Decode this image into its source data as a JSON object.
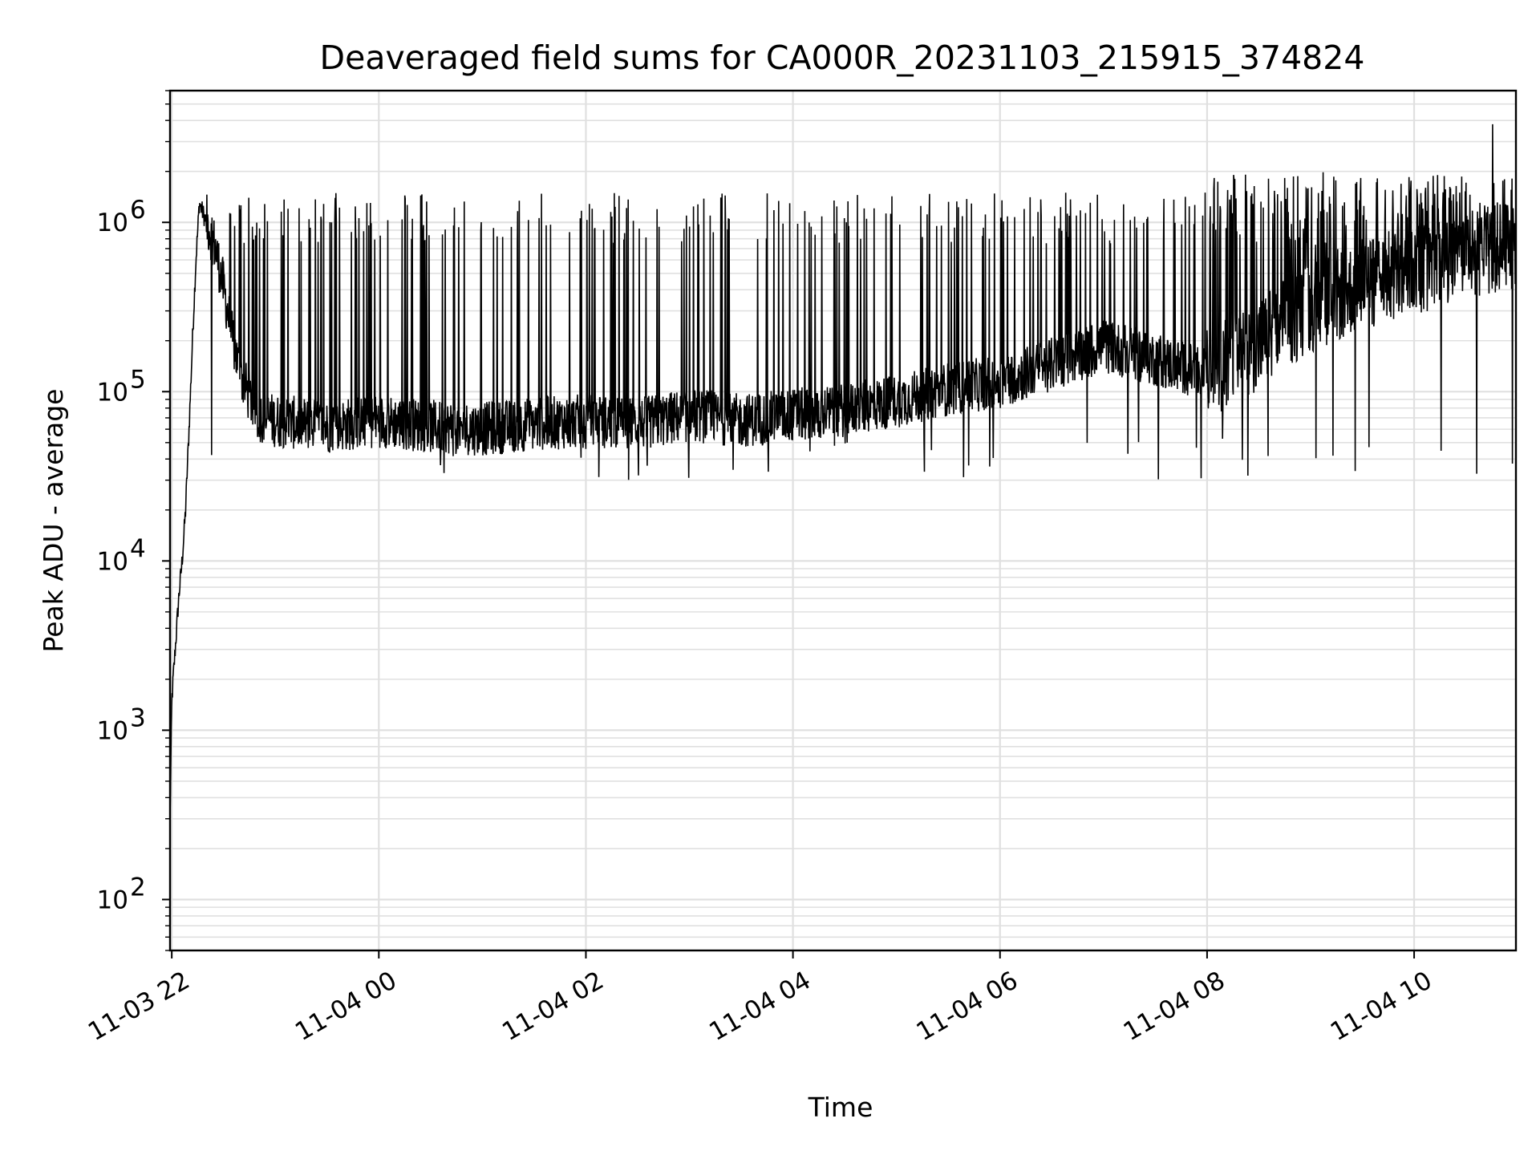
{
  "chart_data": {
    "type": "line",
    "title": "Deaveraged field sums for CA000R_20231103_215915_374824",
    "xlabel": "Time",
    "ylabel": "Peak ADU - average",
    "xscale": "time",
    "yscale": "log",
    "xlim": [
      "2023-11-03 21:59",
      "2023-11-04 10:59"
    ],
    "ylim": [
      50,
      6000000
    ],
    "grid": true,
    "line_color": "#000000",
    "grid_color": "#e0e0e0",
    "x_tick_labels": [
      "11-03 22",
      "11-04 00",
      "11-04 02",
      "11-04 04",
      "11-04 06",
      "11-04 08",
      "11-04 10"
    ],
    "x_tick_values": [
      "2023-11-03 22:00",
      "2023-11-04 00:00",
      "2023-11-04 02:00",
      "2023-11-04 04:00",
      "2023-11-04 06:00",
      "2023-11-04 08:00",
      "2023-11-04 10:00"
    ],
    "y_tick_labels": [
      {
        "base": "10",
        "exp": "2",
        "value": 100
      },
      {
        "base": "10",
        "exp": "3",
        "value": 1000
      },
      {
        "base": "10",
        "exp": "4",
        "value": 10000
      },
      {
        "base": "10",
        "exp": "5",
        "value": 100000
      },
      {
        "base": "10",
        "exp": "6",
        "value": 1000000
      }
    ],
    "series": [
      {
        "x": [
          "2023-11-03 21:59",
          "2023-11-03 22:00",
          "2023-11-03 22:02",
          "2023-11-03 22:04",
          "2023-11-03 22:06",
          "2023-11-03 22:08",
          "2023-11-03 22:10",
          "2023-11-03 22:12",
          "2023-11-03 22:14",
          "2023-11-03 22:16",
          "2023-11-03 22:20",
          "2023-11-03 22:25",
          "2023-11-03 22:30",
          "2023-11-03 22:35",
          "2023-11-03 22:40",
          "2023-11-03 22:45",
          "2023-11-03 22:50",
          "2023-11-03 23:00",
          "2023-11-03 23:30",
          "2023-11-04 00:00",
          "2023-11-04 00:30",
          "2023-11-04 01:00",
          "2023-11-04 01:30",
          "2023-11-04 02:00",
          "2023-11-04 02:30",
          "2023-11-04 03:00",
          "2023-11-04 03:30",
          "2023-11-04 04:00",
          "2023-11-04 04:30",
          "2023-11-04 05:00",
          "2023-11-04 05:30",
          "2023-11-04 06:00",
          "2023-11-04 06:30",
          "2023-11-04 07:00",
          "2023-11-04 07:30",
          "2023-11-04 08:00",
          "2023-11-04 08:30",
          "2023-11-04 09:00",
          "2023-11-04 09:30",
          "2023-11-04 10:00",
          "2023-11-04 10:30",
          "2023-11-04 10:59"
        ],
        "y": [
          300,
          1500,
          3000,
          6000,
          10000,
          20000,
          60000,
          200000,
          600000,
          1300000,
          1000000,
          700000,
          400000,
          200000,
          120000,
          90000,
          70000,
          65000,
          60000,
          65000,
          60000,
          58000,
          62000,
          65000,
          62000,
          70000,
          65000,
          70000,
          75000,
          85000,
          100000,
          110000,
          140000,
          180000,
          150000,
          120000,
          180000,
          300000,
          400000,
          500000,
          600000,
          700000
        ],
        "spike_peak": 1500000,
        "spike_peak_late": 2000000,
        "spike_max": 3800000,
        "dip_min": 30000
      }
    ]
  }
}
